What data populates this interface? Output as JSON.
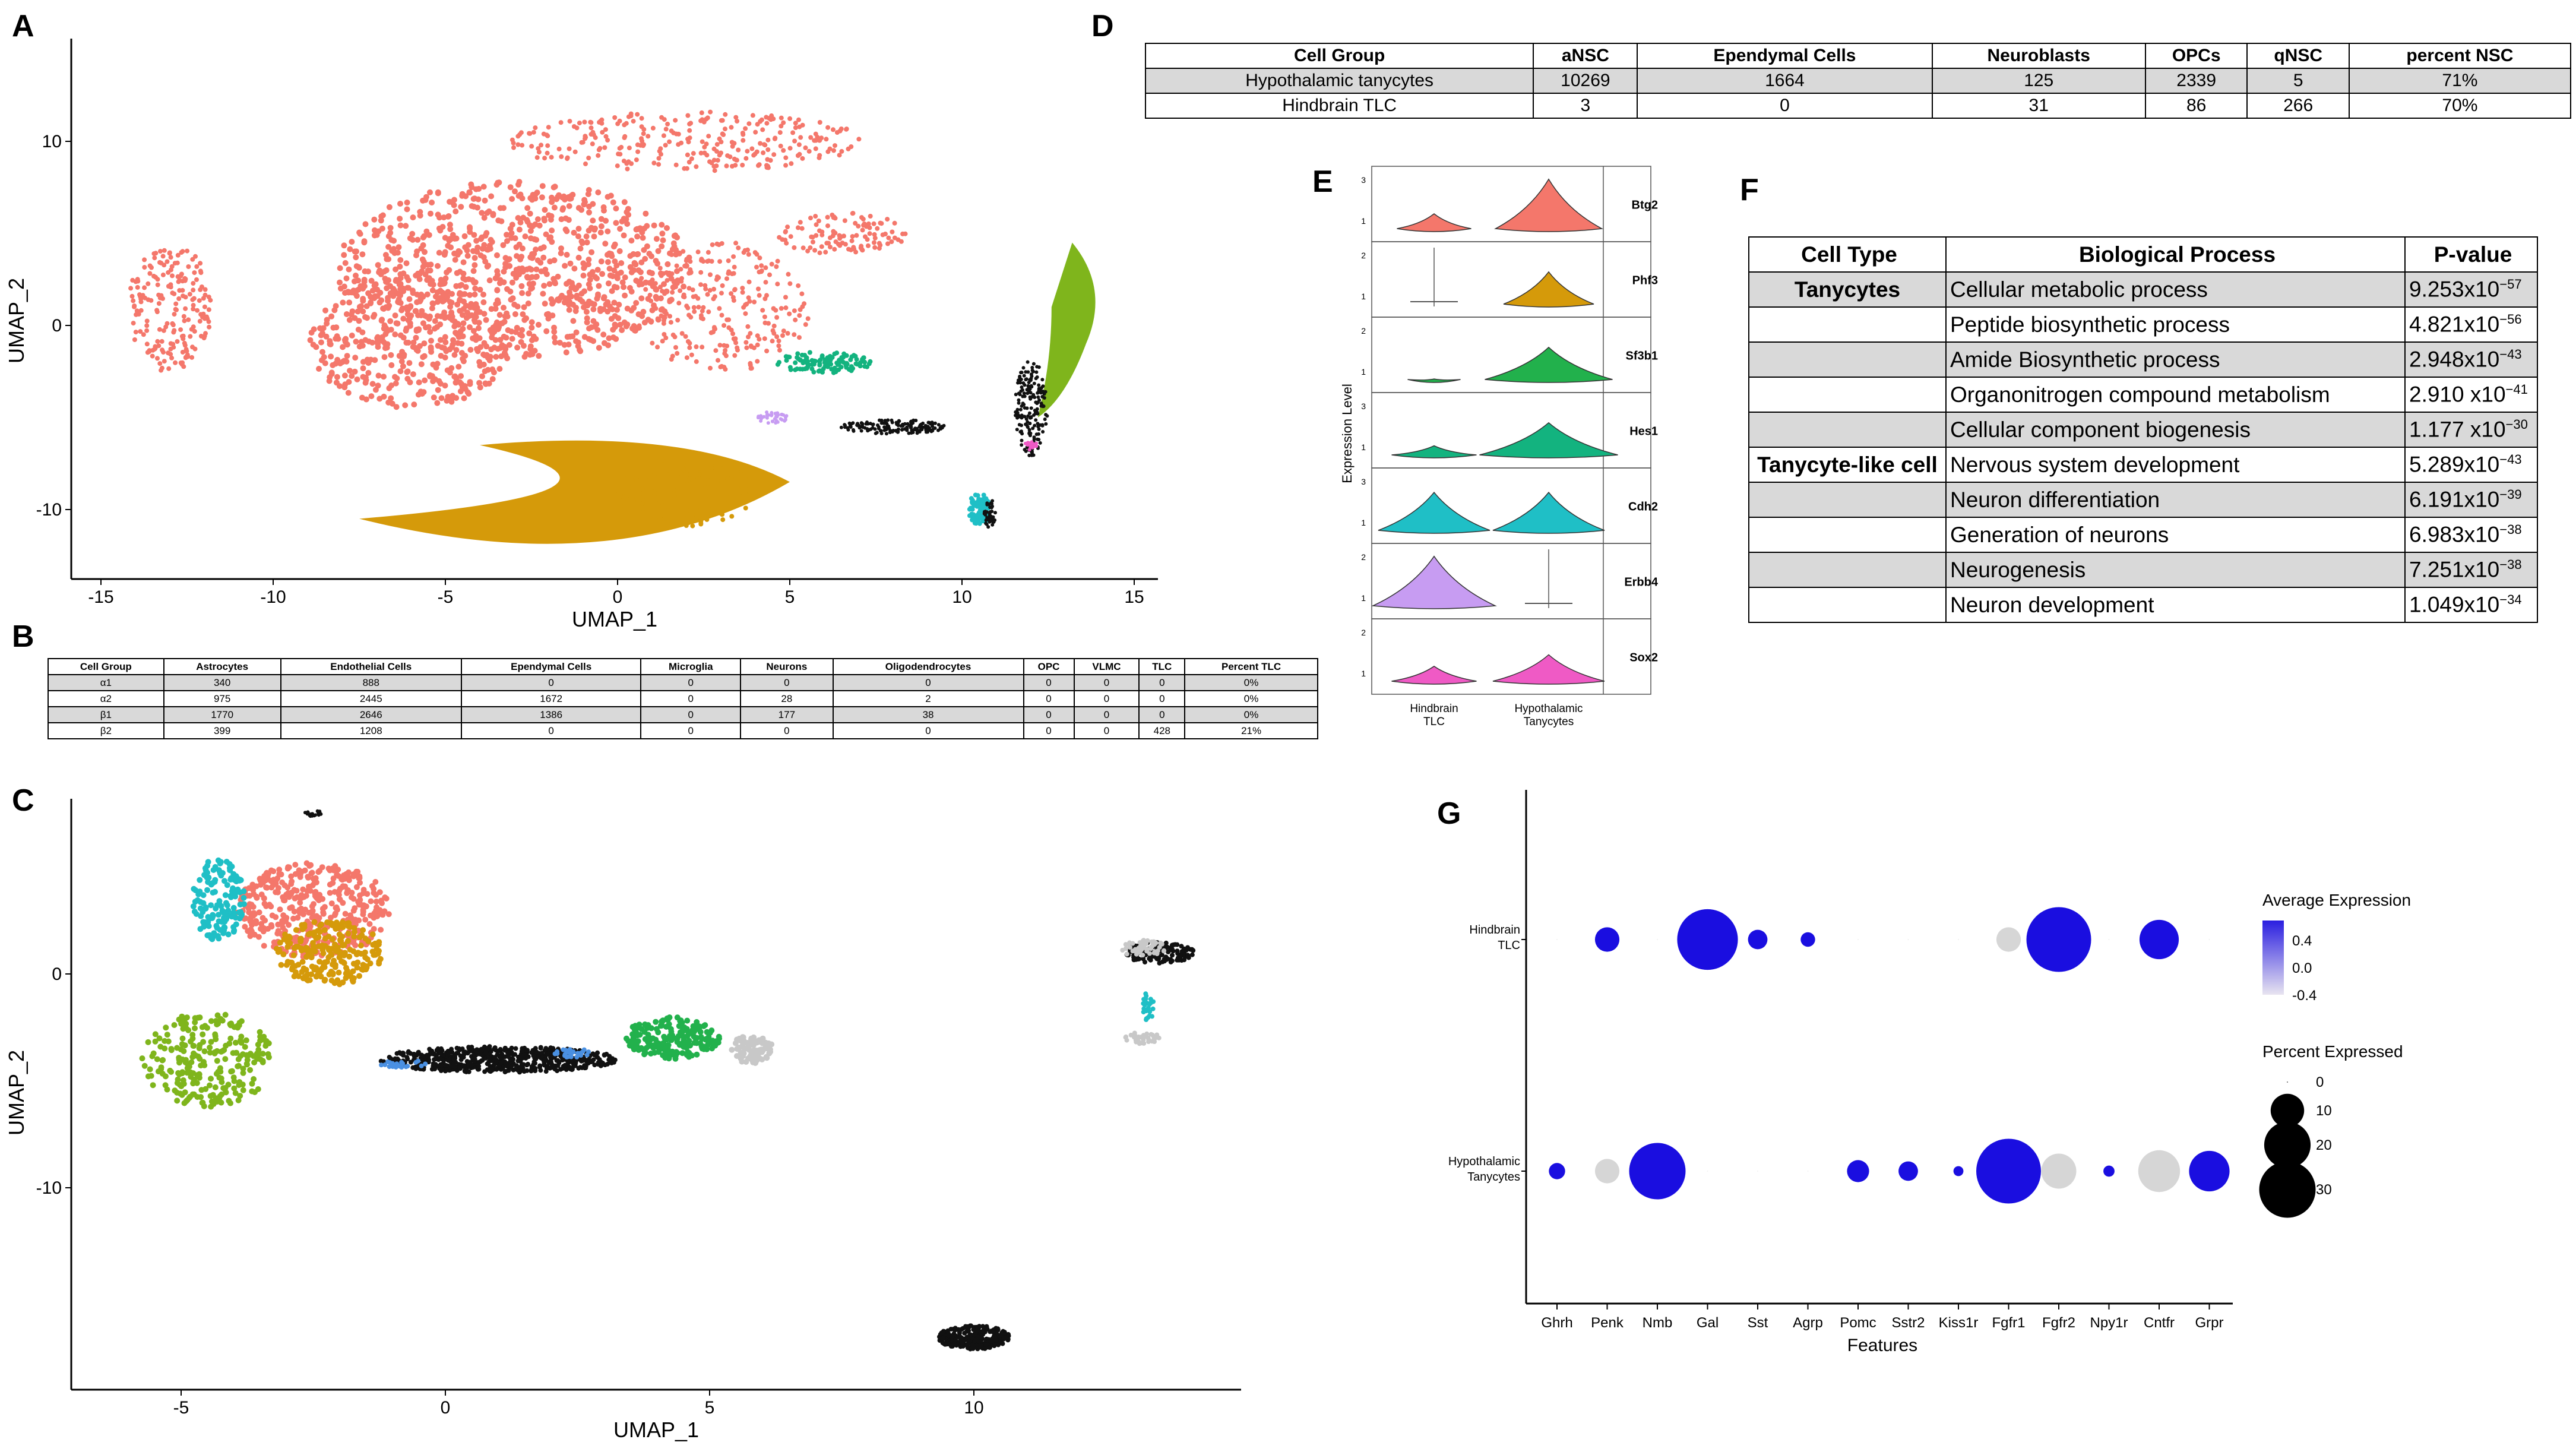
{
  "panels": {
    "a": "A",
    "b": "B",
    "c": "C",
    "d": "D",
    "e": "E",
    "f": "F",
    "g": "G"
  },
  "colors": {
    "salmon": "#f4776b",
    "gold": "#d59a0a",
    "green": "#7fb51c",
    "teal": "#13b37f",
    "cyan": "#1fbfc6",
    "black": "#111111",
    "violet": "#c79cf2",
    "pink": "#ef5ac5",
    "blue": "#4a90e2",
    "grey": "#c8c8c8",
    "emerald": "#22b14c",
    "dotblue": "#1010e0"
  },
  "panel_a": {
    "chart_data": {
      "type": "scatter",
      "xlabel": "UMAP_1",
      "ylabel": "UMAP_2",
      "xlim": [
        -16,
        16
      ],
      "ylim": [
        -13.5,
        15
      ],
      "xticks": [
        "-15",
        "-10",
        "-5",
        "0",
        "5",
        "10",
        "15"
      ],
      "yticks": [
        "10",
        "0",
        "-10"
      ],
      "clusters": [
        {
          "color": "salmon",
          "approx_center": [
            -3,
            2
          ]
        },
        {
          "color": "gold",
          "approx_center": [
            -1,
            -10
          ]
        },
        {
          "color": "green",
          "approx_center": [
            13,
            0
          ]
        },
        {
          "color": "teal",
          "approx_center": [
            6,
            -2
          ]
        },
        {
          "color": "black",
          "approx_center": [
            12,
            -4
          ]
        },
        {
          "color": "cyan",
          "approx_center": [
            10.5,
            -10
          ]
        },
        {
          "color": "violet",
          "approx_center": [
            4.5,
            -5
          ]
        },
        {
          "color": "pink",
          "approx_center": [
            12,
            -6.5
          ]
        }
      ]
    }
  },
  "panel_b": {
    "header": [
      "Cell Group",
      "Astrocytes",
      "Endothelial Cells",
      "Ependymal Cells",
      "Microglia",
      "Neurons",
      "Oligodendrocytes",
      "OPC",
      "VLMC",
      "TLC",
      "Percent TLC"
    ],
    "rows": [
      [
        "α1",
        "340",
        "888",
        "0",
        "0",
        "0",
        "0",
        "0",
        "0",
        "0",
        "0%"
      ],
      [
        "α2",
        "975",
        "2445",
        "1672",
        "0",
        "28",
        "2",
        "0",
        "0",
        "0",
        "0%"
      ],
      [
        "β1",
        "1770",
        "2646",
        "1386",
        "0",
        "177",
        "38",
        "0",
        "0",
        "0",
        "0%"
      ],
      [
        "β2",
        "399",
        "1208",
        "0",
        "0",
        "0",
        "0",
        "0",
        "0",
        "428",
        "21%"
      ]
    ]
  },
  "panel_c": {
    "chart_data": {
      "type": "scatter",
      "xlabel": "UMAP_1",
      "ylabel": "UMAP_2",
      "xlim": [
        -7,
        15
      ],
      "ylim": [
        -19,
        8
      ],
      "xticks": [
        "-5",
        "0",
        "5",
        "10"
      ],
      "yticks": [
        "0",
        "-10"
      ],
      "clusters": [
        {
          "color": "salmon",
          "approx_center": [
            -2.5,
            3
          ]
        },
        {
          "color": "cyan",
          "approx_center": [
            -4.3,
            3.5
          ]
        },
        {
          "color": "gold",
          "approx_center": [
            -2.2,
            1
          ]
        },
        {
          "color": "green",
          "approx_center": [
            -4.5,
            -4
          ]
        },
        {
          "color": "black",
          "approx_center": [
            1,
            -4
          ]
        },
        {
          "color": "emerald",
          "approx_center": [
            4.3,
            -3
          ]
        },
        {
          "color": "grey",
          "approx_center": [
            5.8,
            -3.5
          ]
        },
        {
          "color": "black",
          "approx_center": [
            13.5,
            1
          ]
        },
        {
          "color": "black",
          "approx_center": [
            10,
            -17
          ]
        }
      ]
    }
  },
  "panel_d": {
    "header": [
      "Cell Group",
      "aNSC",
      "Ependymal Cells",
      "Neuroblasts",
      "OPCs",
      "qNSC",
      "percent NSC"
    ],
    "rows": [
      [
        "Hypothalamic tanycytes",
        "10269",
        "1664",
        "125",
        "2339",
        "5",
        "71%"
      ],
      [
        "Hindbrain TLC",
        "3",
        "0",
        "31",
        "86",
        "266",
        "70%"
      ]
    ]
  },
  "panel_e": {
    "chart_data": {
      "type": "violin",
      "ylabel": "Expression Level",
      "categories": [
        "Hindbrain TLC",
        "Hypothalamic Tanycytes"
      ],
      "cat_lines": [
        [
          "Hindbrain",
          "TLC"
        ],
        [
          "Hypothalamic",
          "Tanycytes"
        ]
      ],
      "genes": [
        {
          "name": "Btg2",
          "color": "salmon",
          "ytick_top": "3",
          "ytick_low": "1"
        },
        {
          "name": "Phf3",
          "color": "gold",
          "ytick_top": "2",
          "ytick_low": "1"
        },
        {
          "name": "Sf3b1",
          "color": "emerald",
          "ytick_top": "2",
          "ytick_low": "1"
        },
        {
          "name": "Hes1",
          "color": "teal",
          "ytick_top": "3",
          "ytick_low": "1"
        },
        {
          "name": "Cdh2",
          "color": "cyan",
          "ytick_top": "3",
          "ytick_low": "1"
        },
        {
          "name": "Erbb4",
          "color": "violet",
          "ytick_top": "2",
          "ytick_low": "1"
        },
        {
          "name": "Sox2",
          "color": "pink",
          "ytick_top": "2",
          "ytick_low": "1"
        }
      ]
    }
  },
  "panel_f": {
    "header": [
      "Cell Type",
      "Biological Process",
      "P-value"
    ],
    "rows": [
      {
        "type": "Tanycytes",
        "process": "Cellular metabolic process",
        "mant": "9.253x10",
        "exp": "−57",
        "shade": true
      },
      {
        "type": "",
        "process": "Peptide biosynthetic process",
        "mant": "4.821x10",
        "exp": "−56",
        "shade": false
      },
      {
        "type": "",
        "process": "Amide Biosynthetic process",
        "mant": "2.948x10",
        "exp": "−43",
        "shade": true
      },
      {
        "type": "",
        "process": "Organonitrogen compound metabolism",
        "mant": "2.910 x10",
        "exp": "−41",
        "shade": false
      },
      {
        "type": "",
        "process": "Cellular component biogenesis",
        "mant": "1.177 x10",
        "exp": "−30",
        "shade": true
      },
      {
        "type": "Tanycyte-like cell",
        "process": "Nervous system development",
        "mant": "5.289x10",
        "exp": "−43",
        "shade": false
      },
      {
        "type": "",
        "process": "Neuron differentiation",
        "mant": "6.191x10",
        "exp": "−39",
        "shade": true
      },
      {
        "type": "",
        "process": "Generation of neurons",
        "mant": "6.983x10",
        "exp": "−38",
        "shade": false
      },
      {
        "type": "",
        "process": "Neurogenesis",
        "mant": "7.251x10",
        "exp": "−38",
        "shade": true
      },
      {
        "type": "",
        "process": "Neuron development",
        "mant": "1.049x10",
        "exp": "−34",
        "shade": false
      }
    ]
  },
  "panel_g": {
    "chart_data": {
      "type": "dotplot",
      "xlabel": "Features",
      "features": [
        "Ghrh",
        "Penk",
        "Nmb",
        "Gal",
        "Sst",
        "Agrp",
        "Pomc",
        "Sstr2",
        "Kiss1r",
        "Fgfr1",
        "Fgfr2",
        "Npy1r",
        "Cntfr",
        "Grpr"
      ],
      "groups": [
        [
          "Hindbrain",
          "TLC"
        ],
        [
          "Hypothalamic",
          "Tanycytes"
        ]
      ],
      "percent": [
        [
          0,
          5,
          0,
          35,
          3,
          1.5,
          0,
          0,
          0,
          5,
          40,
          0,
          14,
          0
        ],
        [
          2,
          5,
          30,
          0,
          0,
          0,
          4,
          3,
          0.6,
          40,
          11,
          0.8,
          16,
          15
        ]
      ],
      "average": [
        [
          0,
          0.45,
          0,
          0.45,
          0.45,
          0.45,
          0,
          0,
          0,
          -0.6,
          0.45,
          0,
          0.45,
          0
        ],
        [
          0.45,
          -0.6,
          0.45,
          0,
          0,
          0,
          0.45,
          0.45,
          0.45,
          0.45,
          -0.6,
          0.45,
          -0.6,
          0.45
        ]
      ],
      "legend_color_title": "Average Expression",
      "legend_color_ticks": [
        "0.4",
        "0.0",
        "-0.4"
      ],
      "legend_size_title": "Percent Expressed",
      "legend_size_ticks": [
        "0",
        "10",
        "20",
        "30"
      ]
    }
  }
}
